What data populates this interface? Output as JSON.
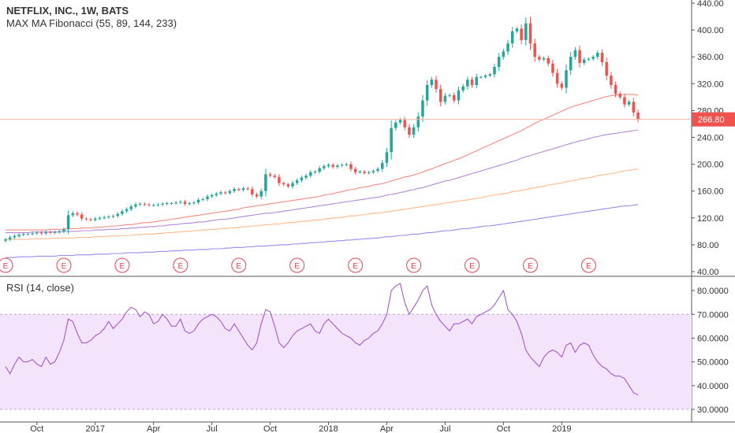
{
  "legend": {
    "symbol": "NETFLIX, INC., 1W, BATS",
    "ma": "MAX MA Fibonacci (55, 89, 144, 233)",
    "rsi": "RSI (14, close)"
  },
  "price_label": "266.80",
  "colors": {
    "up": "#26a69a",
    "down": "#ef5350",
    "ma55": "#f28b82",
    "ma89": "#b388d8",
    "ma144": "#ffb98a",
    "ma233": "#9b8cf0",
    "rsi_line": "#9c4dc4",
    "rsi_band": "#f3e3fb",
    "price_line": "#f5b7a8",
    "price_tag": "#ef5350"
  },
  "chart_data": [
    {
      "type": "candlestick",
      "title": "NETFLIX, INC., 1W, BATS",
      "x_ticks": [
        "Oct",
        "2017",
        "Apr",
        "Jul",
        "Oct",
        "2018",
        "Apr",
        "Jul",
        "Oct",
        "2019"
      ],
      "y_ticks": [
        "440.00",
        "400.00",
        "360.00",
        "320.00",
        "280.00",
        "240.00",
        "200.00",
        "160.00",
        "120.00",
        "80.00",
        "40.00"
      ],
      "ylim": [
        40,
        440
      ],
      "last_price": 266.8,
      "earnings_marker": "E",
      "earnings_weeks": [
        0,
        13,
        26,
        39,
        52,
        65,
        78,
        91,
        104,
        117,
        130
      ],
      "weekly_close": [
        88,
        91,
        93,
        95,
        96,
        96,
        97,
        98,
        97,
        99,
        98,
        99,
        100,
        103,
        124,
        127,
        125,
        119,
        118,
        117,
        119,
        120,
        121,
        122,
        123,
        126,
        130,
        133,
        137,
        140,
        141,
        140,
        139,
        139,
        140,
        141,
        142,
        142,
        143,
        144,
        141,
        142,
        143,
        147,
        148,
        152,
        154,
        156,
        158,
        157,
        160,
        163,
        162,
        164,
        163,
        155,
        152,
        160,
        185,
        183,
        181,
        172,
        170,
        167,
        172,
        176,
        180,
        183,
        188,
        189,
        194,
        197,
        199,
        196,
        198,
        199,
        200,
        193,
        188,
        189,
        187,
        188,
        190,
        193,
        202,
        218,
        254,
        262,
        266,
        255,
        244,
        255,
        271,
        295,
        318,
        326,
        312,
        293,
        302,
        303,
        295,
        310,
        316,
        326,
        318,
        330,
        330,
        332,
        334,
        345,
        360,
        368,
        380,
        398,
        402,
        385,
        410,
        380,
        360,
        356,
        358,
        350,
        336,
        320,
        314,
        340,
        360,
        370,
        351,
        356,
        357,
        360,
        366,
        352,
        332,
        318,
        305,
        300,
        289,
        293,
        277,
        267
      ],
      "series": [
        {
          "name": "55",
          "values": [
            102,
            102,
            102,
            102,
            102,
            102,
            102,
            102,
            102,
            102,
            103,
            103,
            103,
            103,
            104,
            104,
            104,
            105,
            105,
            105,
            106,
            106,
            107,
            107,
            108,
            108,
            109,
            110,
            110,
            111,
            112,
            113,
            113,
            114,
            115,
            116,
            117,
            118,
            119,
            120,
            121,
            122,
            123,
            124,
            125,
            126,
            127,
            128,
            129,
            130,
            131,
            132,
            133,
            135,
            136,
            137,
            138,
            139,
            140,
            141,
            142,
            143,
            144,
            145,
            146,
            147,
            148,
            149,
            150,
            151,
            152,
            154,
            155,
            156,
            158,
            159,
            161,
            162,
            163,
            165,
            166,
            167,
            169,
            170,
            171,
            173,
            175,
            177,
            179,
            181,
            182,
            184,
            186,
            188,
            191,
            193,
            196,
            198,
            201,
            203,
            206,
            208,
            211,
            214,
            217,
            220,
            223,
            226,
            229,
            232,
            235,
            238,
            241,
            244,
            247,
            250,
            254,
            257,
            261,
            264,
            267,
            270,
            273,
            276,
            279,
            282,
            285,
            287,
            289,
            291,
            293,
            295,
            297,
            299,
            301,
            302,
            303,
            304,
            304,
            304,
            304,
            303
          ]
        },
        {
          "name": "89",
          "values": [
            98,
            98,
            98,
            98,
            98,
            98,
            99,
            99,
            99,
            99,
            99,
            99,
            99,
            100,
            100,
            100,
            100,
            101,
            101,
            101,
            102,
            102,
            102,
            103,
            103,
            103,
            104,
            104,
            105,
            105,
            106,
            106,
            107,
            107,
            108,
            108,
            109,
            110,
            110,
            111,
            112,
            112,
            113,
            114,
            114,
            115,
            116,
            117,
            118,
            118,
            119,
            120,
            121,
            122,
            123,
            124,
            125,
            126,
            127,
            127,
            128,
            129,
            130,
            131,
            132,
            133,
            134,
            135,
            136,
            137,
            138,
            139,
            140,
            141,
            142,
            143,
            144,
            145,
            146,
            147,
            148,
            149,
            150,
            151,
            152,
            154,
            155,
            156,
            158,
            159,
            161,
            162,
            164,
            165,
            167,
            169,
            171,
            173,
            175,
            176,
            178,
            180,
            182,
            184,
            186,
            188,
            190,
            192,
            194,
            196,
            198,
            200,
            202,
            204,
            206,
            209,
            211,
            213,
            215,
            217,
            219,
            221,
            223,
            225,
            227,
            229,
            231,
            233,
            235,
            236,
            238,
            240,
            241,
            243,
            244,
            245,
            246,
            247,
            248,
            249,
            250,
            251
          ]
        },
        {
          "name": "144",
          "values": [
            88,
            88,
            88,
            88,
            88,
            88,
            89,
            89,
            89,
            89,
            89,
            90,
            90,
            90,
            90,
            90,
            91,
            91,
            91,
            91,
            92,
            92,
            92,
            93,
            93,
            93,
            94,
            94,
            94,
            95,
            95,
            96,
            96,
            96,
            97,
            97,
            98,
            98,
            99,
            99,
            100,
            100,
            101,
            101,
            102,
            102,
            103,
            103,
            104,
            104,
            105,
            105,
            106,
            107,
            107,
            108,
            108,
            109,
            110,
            110,
            111,
            111,
            112,
            113,
            113,
            114,
            115,
            115,
            116,
            117,
            117,
            118,
            119,
            120,
            120,
            121,
            122,
            123,
            123,
            124,
            125,
            126,
            127,
            127,
            128,
            129,
            130,
            131,
            132,
            133,
            134,
            135,
            136,
            137,
            138,
            139,
            140,
            141,
            142,
            143,
            144,
            145,
            146,
            147,
            148,
            149,
            150,
            152,
            153,
            154,
            155,
            156,
            157,
            159,
            160,
            161,
            162,
            164,
            165,
            166,
            167,
            169,
            170,
            171,
            172,
            174,
            175,
            176,
            178,
            179,
            180,
            181,
            183,
            184,
            185,
            186,
            187,
            189,
            190,
            191,
            192,
            193
          ]
        },
        {
          "name": "233",
          "values": [
            61,
            61,
            61,
            62,
            62,
            62,
            62,
            63,
            63,
            63,
            63,
            63,
            64,
            64,
            64,
            64,
            65,
            65,
            65,
            65,
            66,
            66,
            66,
            66,
            67,
            67,
            67,
            68,
            68,
            68,
            68,
            69,
            69,
            69,
            70,
            70,
            70,
            71,
            71,
            71,
            72,
            72,
            72,
            73,
            73,
            73,
            74,
            74,
            74,
            75,
            75,
            76,
            76,
            76,
            77,
            77,
            78,
            78,
            78,
            79,
            79,
            80,
            80,
            80,
            81,
            81,
            82,
            82,
            83,
            83,
            84,
            84,
            85,
            85,
            86,
            86,
            87,
            87,
            88,
            88,
            89,
            89,
            90,
            90,
            91,
            92,
            92,
            93,
            94,
            94,
            95,
            96,
            96,
            97,
            98,
            98,
            99,
            100,
            101,
            101,
            102,
            103,
            104,
            104,
            105,
            106,
            107,
            108,
            108,
            109,
            110,
            111,
            112,
            113,
            114,
            115,
            116,
            117,
            118,
            119,
            120,
            121,
            122,
            123,
            124,
            125,
            126,
            127,
            128,
            129,
            130,
            131,
            132,
            133,
            134,
            135,
            136,
            137,
            138,
            138,
            139,
            140
          ]
        }
      ]
    },
    {
      "type": "line",
      "title": "RSI (14, close)",
      "y_ticks": [
        "80.0000",
        "70.0000",
        "60.0000",
        "50.0000",
        "40.0000",
        "30.0000"
      ],
      "ylim": [
        27,
        85
      ],
      "band": [
        30,
        70
      ],
      "values": [
        48,
        45,
        49,
        52,
        50,
        50,
        51,
        49,
        48,
        52,
        49,
        50,
        54,
        59,
        68,
        67,
        62,
        58,
        58,
        59,
        61,
        62,
        64,
        67,
        64,
        66,
        68,
        71,
        73,
        72,
        69,
        71,
        70,
        66,
        67,
        70,
        68,
        65,
        65,
        68,
        63,
        62,
        63,
        66,
        68,
        69,
        70,
        69,
        67,
        64,
        63,
        66,
        63,
        60,
        57,
        55,
        58,
        66,
        72,
        71,
        65,
        58,
        56,
        58,
        61,
        63,
        64,
        65,
        66,
        63,
        62,
        66,
        68,
        66,
        64,
        62,
        61,
        60,
        58,
        57,
        59,
        60,
        62,
        63,
        66,
        70,
        80,
        82,
        83,
        75,
        70,
        73,
        76,
        80,
        82,
        74,
        70,
        67,
        65,
        63,
        66,
        66,
        67,
        68,
        66,
        69,
        70,
        71,
        72,
        74,
        77,
        80,
        72,
        70,
        67,
        62,
        55,
        52,
        50,
        48,
        52,
        54,
        55,
        54,
        52,
        57,
        58,
        54,
        57,
        58,
        57,
        53,
        50,
        48,
        47,
        45,
        44,
        44,
        43,
        40,
        37,
        36
      ]
    }
  ],
  "x_tick_weeks": [
    7,
    20,
    33,
    46,
    59,
    72,
    85,
    98,
    111,
    124
  ]
}
